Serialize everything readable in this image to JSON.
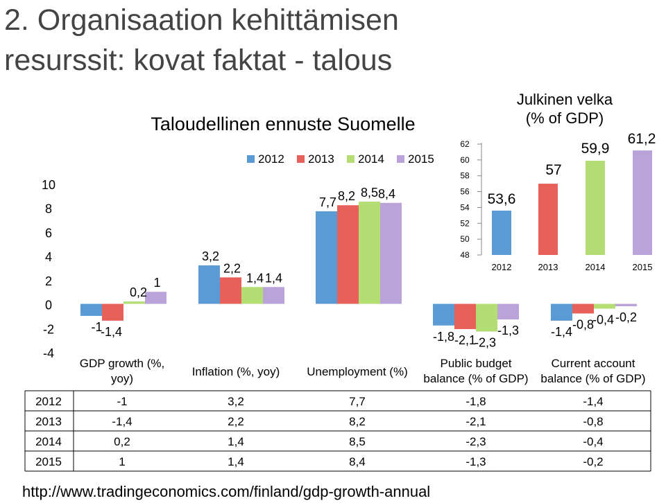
{
  "slide": {
    "title_line1": "2. Organisaation kehittämisen",
    "title_line2": "resurssit: kovat faktat - talous",
    "footer_link": "http://www.tradingeconomics.com/finland/gdp-growth-annual"
  },
  "colors": {
    "2012": "#5b9bd5",
    "2013": "#e8605a",
    "2014": "#b4dd73",
    "2015": "#b9a3d8"
  },
  "chart_data": [
    {
      "type": "bar",
      "title": "Taloudellinen ennuste Suomelle",
      "categories": [
        "GDP growth (%, yoy)",
        "Inflation (%, yoy)",
        "Unemployment (%)",
        "Public budget balance (% of GDP)",
        "Current account balance (% of GDP)"
      ],
      "series": [
        {
          "name": "2012",
          "values": [
            -1,
            3.2,
            7.7,
            -1.8,
            -1.4
          ],
          "labels": [
            "-1",
            "3,2",
            "7,7",
            "-1,8",
            "-1,4"
          ]
        },
        {
          "name": "2013",
          "values": [
            -1.4,
            2.2,
            8.2,
            -2.1,
            -0.8
          ],
          "labels": [
            "-1,4",
            "2,2",
            "8,2",
            "-2,1",
            "-0,8"
          ]
        },
        {
          "name": "2014",
          "values": [
            0.2,
            1.4,
            8.5,
            -2.3,
            -0.4
          ],
          "labels": [
            "0,2",
            "1,4",
            "8,5",
            "-2,3",
            "-0,4"
          ]
        },
        {
          "name": "2015",
          "values": [
            1,
            1.4,
            8.4,
            -1.3,
            -0.2
          ],
          "labels": [
            "1",
            "1,4",
            "8,4",
            "-1,3",
            "-0,2"
          ]
        }
      ],
      "y_ticks": [
        "10",
        "8",
        "6",
        "4",
        "2",
        "0",
        "-2",
        "-4"
      ],
      "ylim": [
        -4,
        10
      ],
      "legend": "top",
      "table": {
        "rows": [
          {
            "year": "2012",
            "cells": [
              "-1",
              "3,2",
              "7,7",
              "-1,8",
              "-1,4"
            ]
          },
          {
            "year": "2013",
            "cells": [
              "-1,4",
              "2,2",
              "8,2",
              "-2,1",
              "-0,8"
            ]
          },
          {
            "year": "2014",
            "cells": [
              "0,2",
              "1,4",
              "8,5",
              "-2,3",
              "-0,4"
            ]
          },
          {
            "year": "2015",
            "cells": [
              "1",
              "1,4",
              "8,4",
              "-1,3",
              "-0,2"
            ]
          }
        ]
      }
    },
    {
      "type": "bar",
      "title": "Julkinen velka (% of GDP)",
      "title_line1": "Julkinen velka",
      "title_line2": "(% of GDP)",
      "categories": [
        "2012",
        "2013",
        "2014",
        "2015"
      ],
      "values": [
        53.6,
        57,
        59.9,
        61.2
      ],
      "labels": [
        "53,6",
        "57",
        "59,9",
        "61,2"
      ],
      "y_ticks": [
        "62",
        "60",
        "58",
        "56",
        "54",
        "52",
        "50",
        "48"
      ],
      "ylim": [
        48,
        62
      ]
    }
  ]
}
